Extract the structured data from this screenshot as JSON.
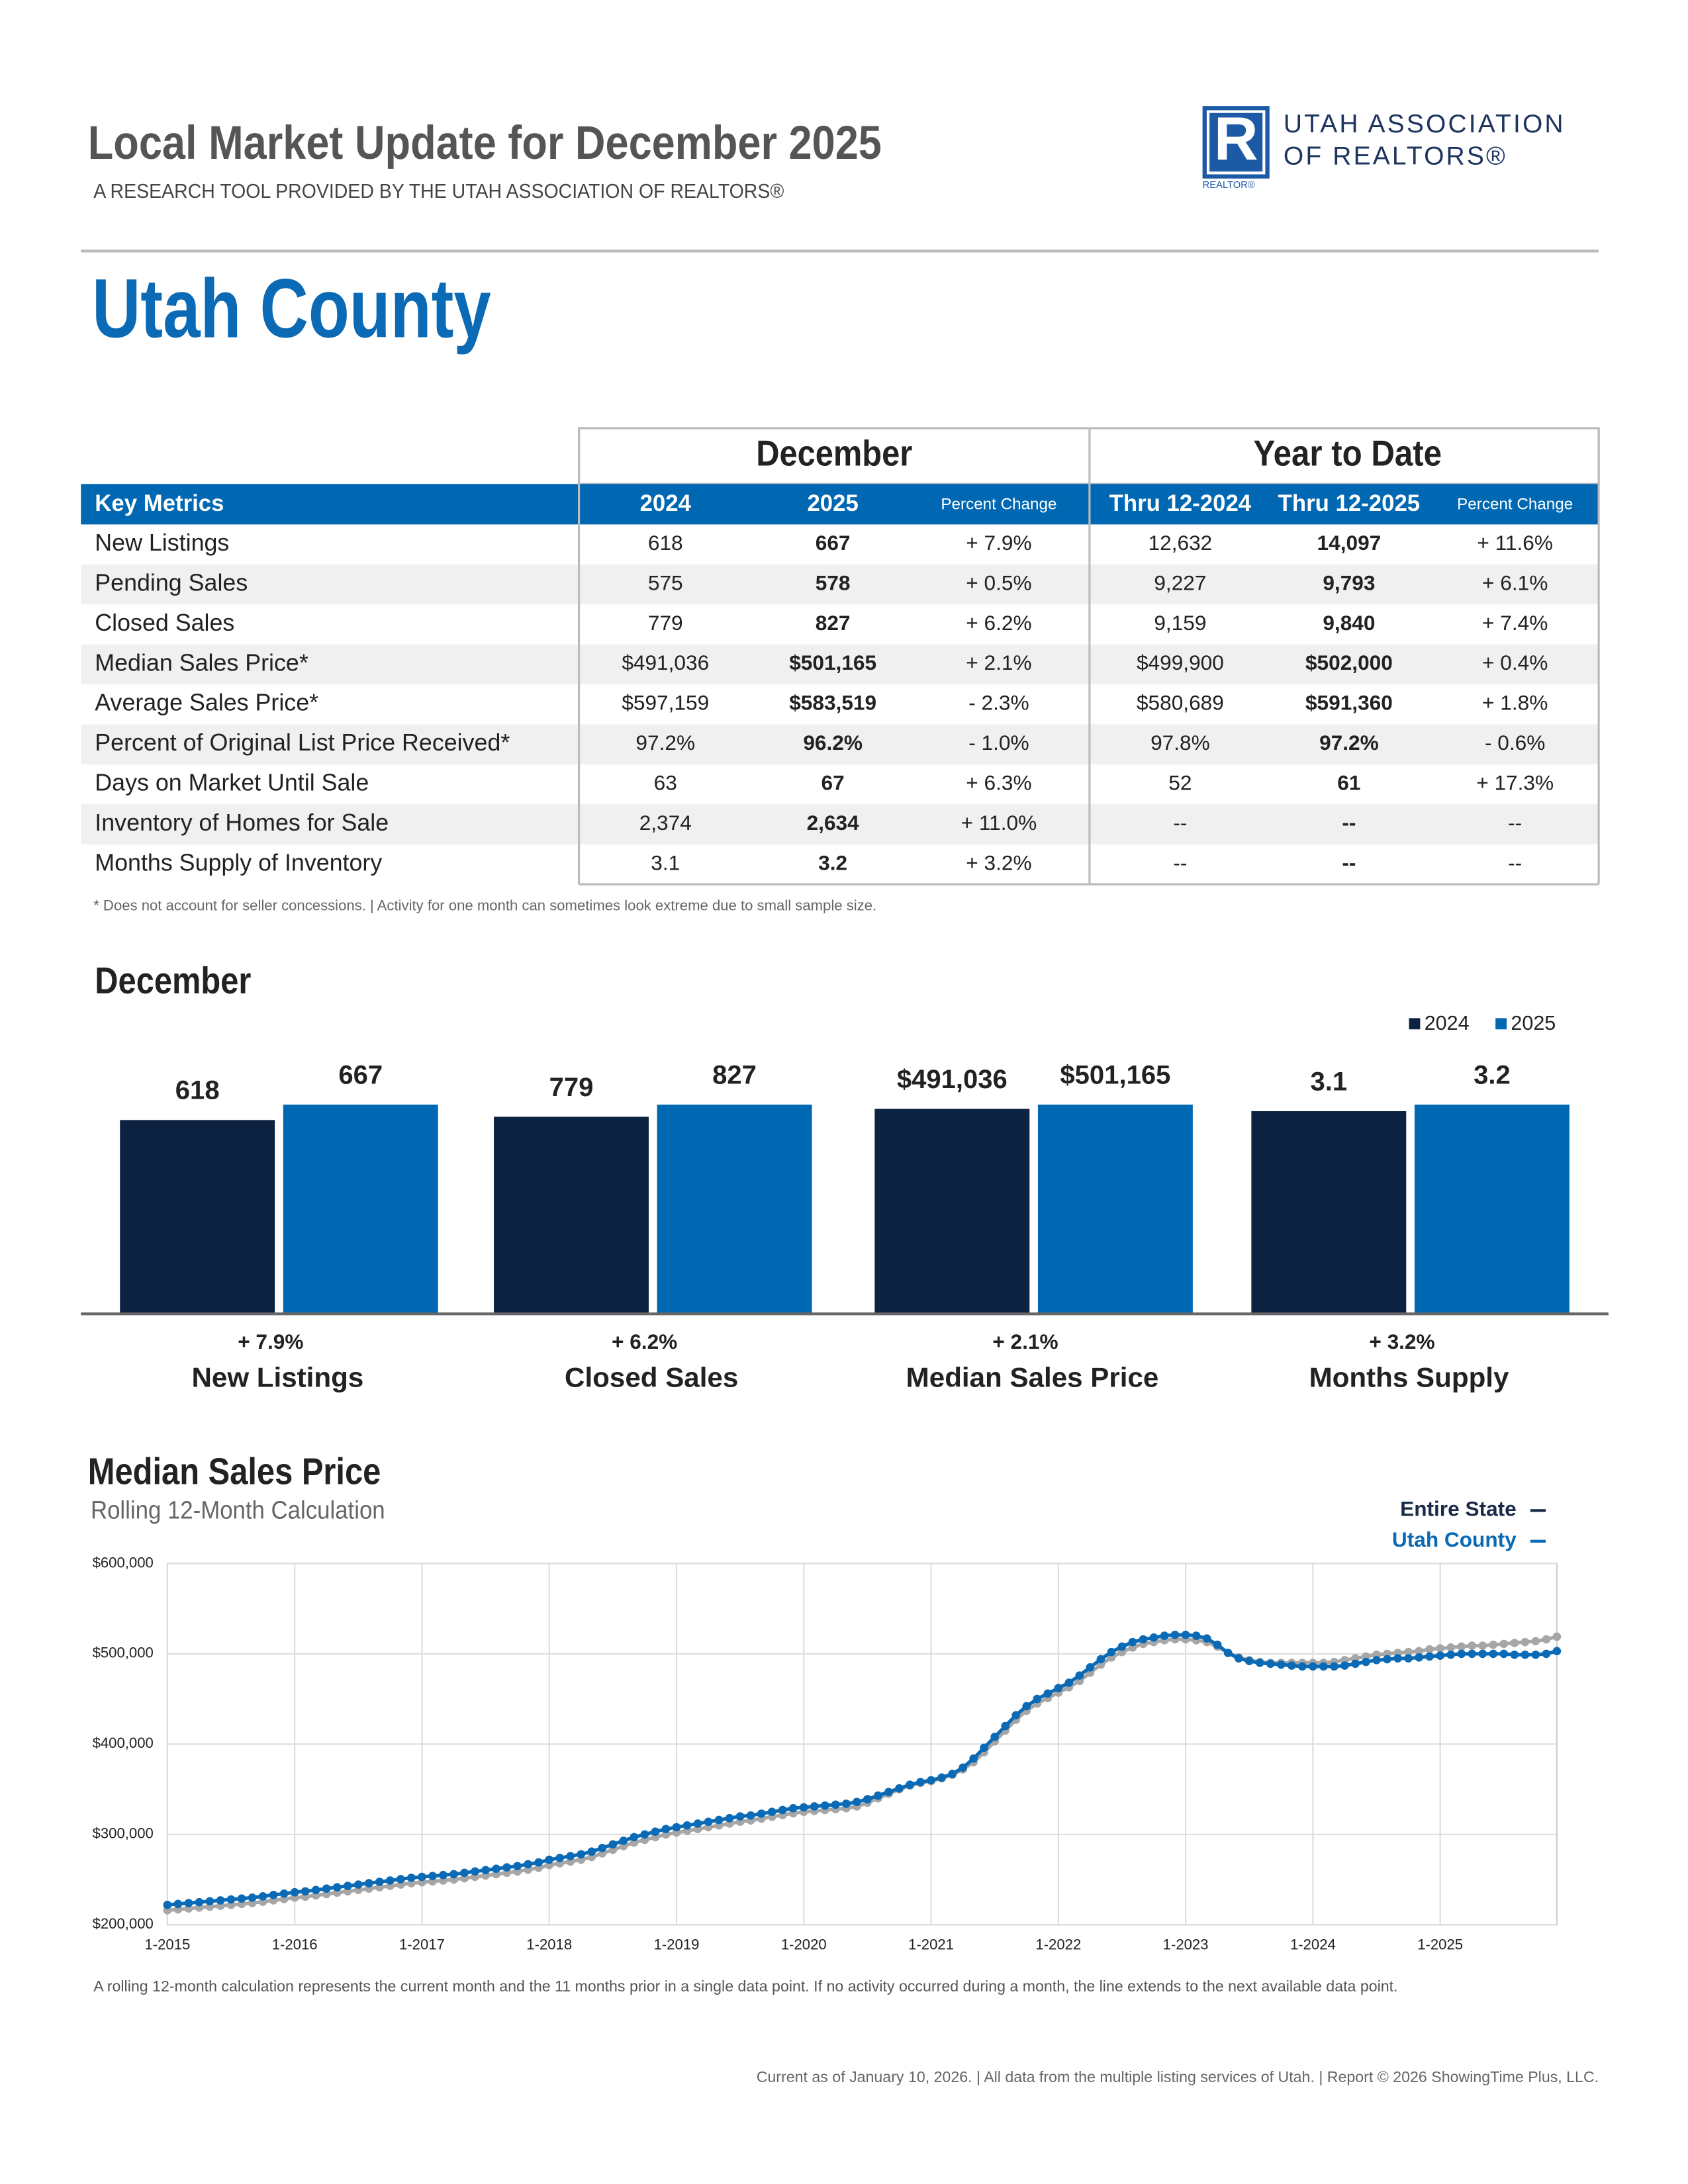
{
  "header": {
    "title": "Local Market Update for December 2025",
    "subtitle": "A RESEARCH TOOL PROVIDED BY THE UTAH ASSOCIATION OF REALTORS®",
    "region": "Utah County"
  },
  "logo": {
    "mark": "R",
    "mark_caption": "REALTOR®",
    "line1": "UTAH ASSOCIATION",
    "line2": "OF REALTORS®"
  },
  "table": {
    "group_headers": [
      "December",
      "Year to Date"
    ],
    "columns": [
      "Key Metrics",
      "2024",
      "2025",
      "Percent Change",
      "Thru 12-2024",
      "Thru 12-2025",
      "Percent Change"
    ],
    "rows": [
      [
        "New Listings",
        "618",
        "667",
        "+ 7.9%",
        "12,632",
        "14,097",
        "+ 11.6%"
      ],
      [
        "Pending Sales",
        "575",
        "578",
        "+ 0.5%",
        "9,227",
        "9,793",
        "+ 6.1%"
      ],
      [
        "Closed Sales",
        "779",
        "827",
        "+ 6.2%",
        "9,159",
        "9,840",
        "+ 7.4%"
      ],
      [
        "Median Sales Price*",
        "$491,036",
        "$501,165",
        "+ 2.1%",
        "$499,900",
        "$502,000",
        "+ 0.4%"
      ],
      [
        "Average Sales Price*",
        "$597,159",
        "$583,519",
        "- 2.3%",
        "$580,689",
        "$591,360",
        "+ 1.8%"
      ],
      [
        "Percent of Original List Price Received*",
        "97.2%",
        "96.2%",
        "- 1.0%",
        "97.8%",
        "97.2%",
        "- 0.6%"
      ],
      [
        "Days on Market Until Sale",
        "63",
        "67",
        "+ 6.3%",
        "52",
        "61",
        "+ 17.3%"
      ],
      [
        "Inventory of Homes for Sale",
        "2,374",
        "2,634",
        "+ 11.0%",
        "--",
        "--",
        "--"
      ],
      [
        "Months Supply of Inventory",
        "3.1",
        "3.2",
        "+ 3.2%",
        "--",
        "--",
        "--"
      ]
    ]
  },
  "footnote": "* Does not account for seller concessions.  |  Activity for one month can sometimes look extreme due to small sample size.",
  "chart_data": [
    {
      "type": "bar",
      "title": "December",
      "legend": "top-right",
      "categories": [
        "New Listings",
        "Closed Sales",
        "Median Sales Price",
        "Months Supply"
      ],
      "changes": [
        "+ 7.9%",
        "+ 6.2%",
        "+ 2.1%",
        "+ 3.2%"
      ],
      "series": [
        {
          "name": "2024",
          "color": "#0d2240",
          "values": [
            618,
            779,
            491036,
            3.1
          ],
          "value_labels": [
            "618",
            "779",
            "$491,036",
            "3.1"
          ]
        },
        {
          "name": "2025",
          "color": "#0068b3",
          "values": [
            667,
            827,
            501165,
            3.2
          ],
          "value_labels": [
            "667",
            "827",
            "$501,165",
            "3.2"
          ]
        }
      ]
    },
    {
      "type": "line",
      "title": "Median Sales Price",
      "subtitle": "Rolling 12-Month Calculation",
      "legend": "top-right",
      "grid": true,
      "ylim": [
        200000,
        600000
      ],
      "yticks": [
        {
          "value": 200000,
          "label": "$200,000"
        },
        {
          "value": 300000,
          "label": "$300,000"
        },
        {
          "value": 400000,
          "label": "$400,000"
        },
        {
          "value": 500000,
          "label": "$500,000"
        },
        {
          "value": 600000,
          "label": "$600,000"
        }
      ],
      "categories": [
        "1-2015",
        null,
        null,
        null,
        null,
        null,
        null,
        null,
        null,
        null,
        null,
        null,
        "1-2016",
        null,
        null,
        null,
        null,
        null,
        null,
        null,
        null,
        null,
        null,
        null,
        "1-2017",
        null,
        null,
        null,
        null,
        null,
        null,
        null,
        null,
        null,
        null,
        null,
        "1-2018",
        null,
        null,
        null,
        null,
        null,
        null,
        null,
        null,
        null,
        null,
        null,
        "1-2019",
        null,
        null,
        null,
        null,
        null,
        null,
        null,
        null,
        null,
        null,
        null,
        "1-2020",
        null,
        null,
        null,
        null,
        null,
        null,
        null,
        null,
        null,
        null,
        null,
        "1-2021",
        null,
        null,
        null,
        null,
        null,
        null,
        null,
        null,
        null,
        null,
        null,
        "1-2022",
        null,
        null,
        null,
        null,
        null,
        null,
        null,
        null,
        null,
        null,
        null,
        "1-2023",
        null,
        null,
        null,
        null,
        null,
        null,
        null,
        null,
        null,
        null,
        null,
        "1-2024",
        null,
        null,
        null,
        null,
        null,
        null,
        null,
        null,
        null,
        null,
        null,
        "1-2025",
        null,
        null,
        null,
        null,
        null,
        null,
        null,
        null,
        null,
        null,
        null
      ],
      "series": [
        {
          "name": "Entire State",
          "color": "#a6a6a6",
          "label_color": "#1b2a4a",
          "values": [
            216000,
            217000,
            218000,
            219000,
            220000,
            221000,
            222000,
            223000,
            224000,
            225500,
            227000,
            228500,
            230000,
            231000,
            232500,
            234000,
            235500,
            237000,
            238500,
            240000,
            241500,
            243000,
            244500,
            246000,
            247000,
            248000,
            249000,
            250000,
            251500,
            253000,
            254500,
            256000,
            257500,
            259000,
            261000,
            263000,
            266000,
            268000,
            270000,
            272000,
            275000,
            279000,
            283000,
            287000,
            291000,
            294000,
            297000,
            300000,
            302000,
            304000,
            306000,
            308000,
            310000,
            312000,
            314000,
            315500,
            317500,
            319500,
            321500,
            323500,
            325000,
            326000,
            327000,
            328000,
            329000,
            331000,
            335000,
            340000,
            345000,
            350000,
            354000,
            357000,
            359000,
            362000,
            366000,
            372000,
            380000,
            391000,
            403000,
            415000,
            427000,
            437000,
            445000,
            451000,
            457000,
            463000,
            470000,
            479000,
            488000,
            496000,
            502000,
            507000,
            511000,
            513000,
            515000,
            516000,
            516000,
            515000,
            513000,
            508000,
            501000,
            496000,
            493000,
            491000,
            490000,
            490000,
            490000,
            490000,
            490000,
            490000,
            491000,
            493000,
            495000,
            497000,
            499000,
            500000,
            501000,
            502000,
            503000,
            505000,
            506000,
            507000,
            508000,
            509000,
            509000,
            510000,
            511000,
            512000,
            513000,
            514000,
            516000,
            519000
          ]
        },
        {
          "name": "Utah County",
          "color": "#0a6ab5",
          "label_color": "#0a6ab5",
          "values": [
            222000,
            223000,
            224000,
            225000,
            226000,
            227000,
            228000,
            229000,
            230000,
            231500,
            233000,
            234500,
            236000,
            237000,
            238500,
            240000,
            241500,
            243000,
            244500,
            246000,
            247500,
            249000,
            250500,
            252000,
            253000,
            254000,
            255000,
            256000,
            257500,
            259000,
            260500,
            262000,
            263500,
            265000,
            267000,
            269000,
            272000,
            274000,
            276000,
            278000,
            281000,
            285000,
            289000,
            293000,
            297000,
            300000,
            303000,
            306000,
            308000,
            310000,
            312000,
            314000,
            316000,
            318000,
            320000,
            321000,
            323000,
            325000,
            327000,
            329000,
            330000,
            331000,
            332000,
            333000,
            334000,
            336000,
            339000,
            343000,
            347000,
            351000,
            355000,
            358000,
            360000,
            363000,
            367000,
            374000,
            384000,
            396000,
            408000,
            420000,
            432000,
            442000,
            450000,
            456000,
            462000,
            468000,
            476000,
            485000,
            494000,
            502000,
            508000,
            513000,
            516000,
            518000,
            520000,
            521000,
            521000,
            520000,
            517000,
            510000,
            501000,
            495000,
            492000,
            490000,
            489000,
            488000,
            487000,
            486000,
            486000,
            486000,
            486000,
            487000,
            489000,
            491000,
            493000,
            494000,
            495000,
            495000,
            496000,
            497000,
            498000,
            499000,
            500000,
            500000,
            500000,
            500000,
            500000,
            499000,
            499000,
            499000,
            500000,
            503000
          ]
        }
      ]
    }
  ],
  "chart_note": "A rolling 12-month calculation represents the current month and the 11 months prior in a single data point. If no activity occurred during a month, the line extends to the next available data point.",
  "footer": "Current as of January 10, 2026.  |  All data from the multiple listing services of Utah. |  Report © 2026 ShowingTime Plus, LLC."
}
